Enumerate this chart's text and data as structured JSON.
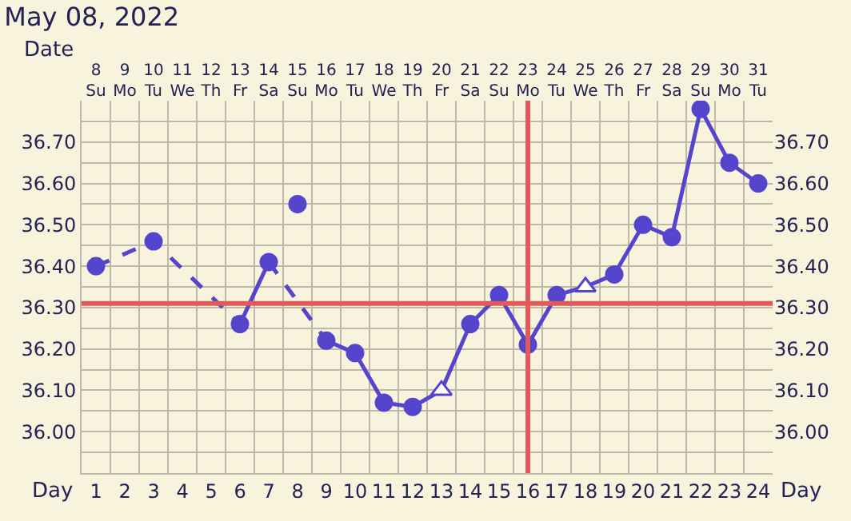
{
  "chart_data": {
    "type": "line",
    "title": "May 08, 2022",
    "xlabel": "Day",
    "x2label": "Date",
    "xlim": [
      0.5,
      24.5
    ],
    "xticks": [
      1,
      2,
      3,
      4,
      5,
      6,
      7,
      8,
      9,
      10,
      11,
      12,
      13,
      14,
      15,
      16,
      17,
      18,
      19,
      20,
      21,
      22,
      23,
      24
    ],
    "x2lim": [
      7.5,
      31.5
    ],
    "x2ticks": [
      {
        "value": 8,
        "label": "8\nSu"
      },
      {
        "value": 9,
        "label": "9\nMo"
      },
      {
        "value": 10,
        "label": "10\nTu"
      },
      {
        "value": 11,
        "label": "11\nWe"
      },
      {
        "value": 12,
        "label": "12\nTh"
      },
      {
        "value": 13,
        "label": "13\nFr"
      },
      {
        "value": 14,
        "label": "14\nSa"
      },
      {
        "value": 15,
        "label": "15\nSu"
      },
      {
        "value": 16,
        "label": "16\nMo"
      },
      {
        "value": 17,
        "label": "17\nTu"
      },
      {
        "value": 18,
        "label": "18\nWe"
      },
      {
        "value": 19,
        "label": "19\nTh"
      },
      {
        "value": 20,
        "label": "20\nFr"
      },
      {
        "value": 21,
        "label": "21\nSa"
      },
      {
        "value": 22,
        "label": "22\nSu"
      },
      {
        "value": 23,
        "label": "23\nMo"
      },
      {
        "value": 24,
        "label": "24\nTu"
      },
      {
        "value": 25,
        "label": "25\nWe"
      },
      {
        "value": 26,
        "label": "26\nTh"
      },
      {
        "value": 27,
        "label": "27\nFr"
      },
      {
        "value": 28,
        "label": "28\nSa"
      },
      {
        "value": 29,
        "label": "29\nSu"
      },
      {
        "value": 30,
        "label": "30\nMo"
      },
      {
        "value": 31,
        "label": "31\nTu"
      }
    ],
    "ylim": [
      35.9,
      36.8
    ],
    "yticks": [
      {
        "value": 36.0,
        "label": "36.00"
      },
      {
        "value": 36.1,
        "label": "36.10"
      },
      {
        "value": 36.2,
        "label": "36.20"
      },
      {
        "value": 36.3,
        "label": "36.30"
      },
      {
        "value": 36.4,
        "label": "36.40"
      },
      {
        "value": 36.5,
        "label": "36.50"
      },
      {
        "value": 36.6,
        "label": "36.60"
      },
      {
        "value": 36.7,
        "label": "36.70"
      }
    ],
    "y2lim": [
      35.9,
      36.8
    ],
    "y2ticks": [
      {
        "value": 36.0,
        "label": "36.00"
      },
      {
        "value": 36.1,
        "label": "36.10"
      },
      {
        "value": 36.2,
        "label": "36.20"
      },
      {
        "value": 36.3,
        "label": "36.30"
      },
      {
        "value": 36.4,
        "label": "36.40"
      },
      {
        "value": 36.5,
        "label": "36.50"
      },
      {
        "value": 36.6,
        "label": "36.60"
      },
      {
        "value": 36.7,
        "label": "36.70"
      }
    ],
    "grid": true,
    "ref_lines": [
      {
        "axis": "y",
        "value": 36.31,
        "color": "#e05a5a"
      },
      {
        "axis": "x",
        "value": 16,
        "color": "#e05a5a"
      }
    ],
    "series": [
      {
        "x": [
          1,
          3,
          6
        ],
        "values": [
          36.4,
          36.46,
          36.26
        ],
        "color": "#5544cc",
        "line_style": "dashed",
        "marker": "none"
      },
      {
        "x": [
          7,
          9
        ],
        "values": [
          36.41,
          36.22
        ],
        "color": "#5544cc",
        "line_style": "dashed",
        "marker": "none"
      },
      {
        "x": [
          6,
          7
        ],
        "values": [
          36.26,
          36.41
        ],
        "color": "#5544cc",
        "line_style": "solid",
        "marker": "none"
      },
      {
        "x": [
          9,
          10,
          11,
          12,
          13,
          14,
          15,
          16,
          17,
          18,
          19,
          20,
          21,
          22,
          23,
          24
        ],
        "values": [
          36.22,
          36.19,
          36.07,
          36.06,
          36.1,
          36.26,
          36.33,
          36.21,
          36.33,
          36.35,
          36.38,
          36.5,
          36.47,
          36.78,
          36.65,
          36.6
        ],
        "color": "#5544cc",
        "line_style": "solid",
        "marker": "none"
      },
      {
        "type": "scatter",
        "x": [
          1,
          3,
          6,
          7,
          8,
          9,
          10,
          11,
          12,
          14,
          15,
          16,
          17,
          19,
          20,
          21,
          22,
          23,
          24
        ],
        "values": [
          36.4,
          36.46,
          36.26,
          36.41,
          36.55,
          36.22,
          36.19,
          36.07,
          36.06,
          36.26,
          36.33,
          36.21,
          36.33,
          36.38,
          36.5,
          36.47,
          36.78,
          36.65,
          36.6
        ],
        "color": "#5544cc",
        "marker": "circle"
      },
      {
        "type": "scatter",
        "x": [
          13,
          18
        ],
        "values": [
          36.1,
          36.35
        ],
        "color": "#5544cc",
        "marker": "triangle"
      }
    ]
  }
}
